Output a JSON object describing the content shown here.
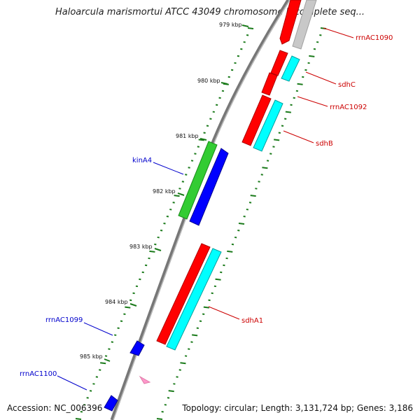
{
  "title": "Haloarcula marismortui ATCC 43049 chromosome I, complete seq...",
  "footer": {
    "accession": "Accession: NC_006396",
    "topology": "Topology: circular; Length: 3,131,724 bp; Genes: 3,186"
  },
  "scale": {
    "labels": [
      "979 kbp",
      "980 kbp",
      "981 kbp",
      "982 kbp",
      "983 kbp",
      "984 kbp",
      "985 kbp"
    ]
  },
  "genes": {
    "outer": [
      {
        "label": "rrnAC1090",
        "strand": "plus",
        "color": "#ff0000"
      },
      {
        "label": "sdhC",
        "strand": "plus",
        "color": "#00ffff"
      },
      {
        "label": "rrnAC1092",
        "strand": "plus",
        "color": "#ff0000"
      },
      {
        "label": "sdhB",
        "strand": "plus",
        "color": "#00ffff"
      },
      {
        "label": "sdhA1",
        "strand": "plus",
        "color": "#ff0000"
      }
    ],
    "inner": [
      {
        "label": "kinA4",
        "strand": "minus",
        "color": "#0000ff"
      },
      {
        "label": "rrnAC1099",
        "strand": "minus",
        "color": "#0000ff"
      },
      {
        "label": "rrnAC1100",
        "strand": "minus",
        "color": "#0000ff"
      }
    ]
  },
  "colors": {
    "backbone": "#888888",
    "tick": "#1a7a1a",
    "plus_label": "#cc0000",
    "minus_label": "#0000cc",
    "green_feature": "#33cc33",
    "gray_feature": "#c8c8c8",
    "pink_marker": "#ff99cc"
  }
}
